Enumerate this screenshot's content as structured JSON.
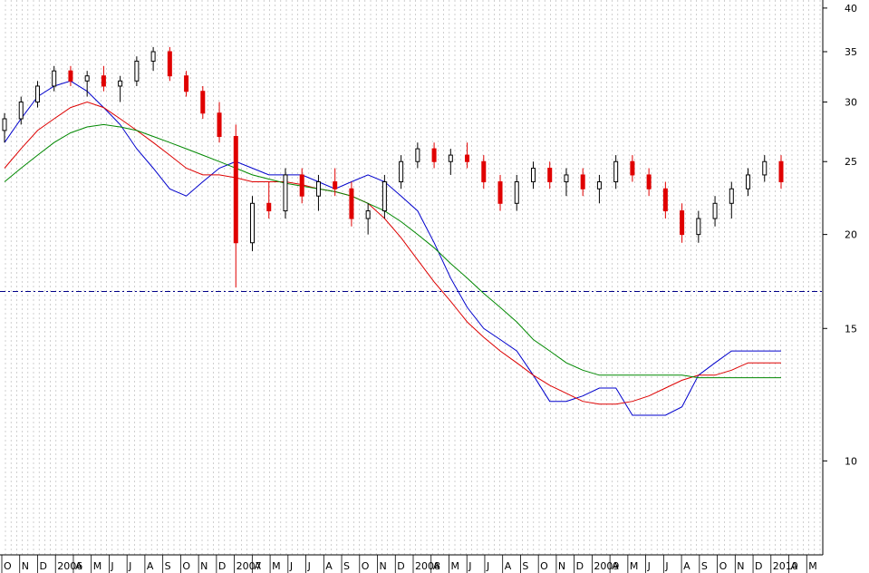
{
  "chart_data": {
    "type": "candlestick",
    "scale": "log",
    "ylim": [
      7.5,
      41
    ],
    "yticks": [
      {
        "value": 40,
        "label": "40"
      },
      {
        "value": 35,
        "label": "35"
      },
      {
        "value": 30,
        "label": "30"
      },
      {
        "value": 25,
        "label": "25"
      },
      {
        "value": 20,
        "label": "20"
      },
      {
        "value": 15,
        "label": "15"
      },
      {
        "value": 10,
        "label": "10"
      }
    ],
    "xticks": [
      "O",
      "N",
      "D",
      "2006",
      "A",
      "M",
      "J",
      "J",
      "A",
      "S",
      "O",
      "N",
      "D",
      "2007",
      "A",
      "M",
      "J",
      "J",
      "A",
      "S",
      "O",
      "N",
      "D",
      "2008",
      "A",
      "M",
      "J",
      "J",
      "A",
      "S",
      "O",
      "N",
      "D",
      "2009",
      "A",
      "M",
      "J",
      "J",
      "A",
      "S",
      "O",
      "N",
      "D",
      "2010",
      "A",
      "M"
    ],
    "grid": true,
    "reference_line": 16.8,
    "colors": {
      "up": "#000000",
      "down": "#e00000",
      "ma_short": "#0000cc",
      "ma_medium": "#dd0000",
      "ma_long": "#008800",
      "grid": "#b0b0b0",
      "axis": "#000000",
      "reference": "#000088"
    },
    "series": [
      {
        "name": "",
        "color": "#0000cc",
        "values": [
          26.5,
          28.5,
          30.5,
          31.5,
          32.0,
          31.0,
          29.5,
          28.0,
          26.0,
          24.5,
          23.0,
          22.5,
          23.5,
          24.5,
          25.0,
          24.5,
          24.0,
          24.0,
          24.0,
          23.5,
          23.0,
          23.5,
          24.0,
          23.5,
          22.5,
          21.5,
          19.5,
          17.5,
          16.0,
          15.0,
          14.5,
          14.0,
          13.0,
          12.0,
          12.0,
          12.2,
          12.5,
          12.5,
          11.5,
          11.5,
          11.5,
          11.8,
          13.0,
          13.5,
          14.0,
          14.0,
          14.0,
          14.0
        ]
      },
      {
        "name": "",
        "color": "#dd0000",
        "values": [
          24.5,
          26.0,
          27.5,
          28.5,
          29.5,
          30.0,
          29.5,
          28.5,
          27.5,
          26.5,
          25.5,
          24.5,
          24.0,
          24.0,
          23.8,
          23.5,
          23.5,
          23.5,
          23.3,
          23.0,
          22.8,
          22.5,
          22.0,
          21.0,
          19.8,
          18.5,
          17.3,
          16.3,
          15.3,
          14.6,
          14.0,
          13.5,
          13.0,
          12.6,
          12.3,
          12.0,
          11.9,
          11.9,
          12.0,
          12.2,
          12.5,
          12.8,
          13.0,
          13.0,
          13.2,
          13.5,
          13.5,
          13.5
        ]
      },
      {
        "name": "",
        "color": "#008800",
        "values": [
          23.5,
          24.5,
          25.5,
          26.5,
          27.3,
          27.8,
          28.0,
          27.8,
          27.5,
          27.0,
          26.5,
          26.0,
          25.5,
          25.0,
          24.5,
          24.0,
          23.7,
          23.4,
          23.2,
          23.0,
          22.8,
          22.5,
          22.0,
          21.5,
          20.8,
          20.0,
          19.2,
          18.3,
          17.5,
          16.7,
          16.0,
          15.3,
          14.5,
          14.0,
          13.5,
          13.2,
          13.0,
          13.0,
          13.0,
          13.0,
          13.0,
          13.0,
          12.9,
          12.9,
          12.9,
          12.9,
          12.9,
          12.9
        ]
      }
    ],
    "candles": [
      [
        27.5,
        29.0,
        26.5,
        28.5
      ],
      [
        28.5,
        30.5,
        28.0,
        30.0
      ],
      [
        30.0,
        32.0,
        29.5,
        31.5
      ],
      [
        31.5,
        33.5,
        31.0,
        33.0
      ],
      [
        33.0,
        33.5,
        31.5,
        32.0
      ],
      [
        32.0,
        33.0,
        30.5,
        32.5
      ],
      [
        32.5,
        33.5,
        31.0,
        31.5
      ],
      [
        31.5,
        32.5,
        30.0,
        32.0
      ],
      [
        32.0,
        34.5,
        31.5,
        34.0
      ],
      [
        34.0,
        35.5,
        33.0,
        35.0
      ],
      [
        35.0,
        35.5,
        32.0,
        32.5
      ],
      [
        32.5,
        33.0,
        30.5,
        31.0
      ],
      [
        31.0,
        31.5,
        28.5,
        29.0
      ],
      [
        29.0,
        30.0,
        26.5,
        27.0
      ],
      [
        27.0,
        28.0,
        17.0,
        19.5
      ],
      [
        19.5,
        22.5,
        19.0,
        22.0
      ],
      [
        22.0,
        23.5,
        21.0,
        21.5
      ],
      [
        21.5,
        24.5,
        21.0,
        24.0
      ],
      [
        24.0,
        24.5,
        22.0,
        22.5
      ],
      [
        22.5,
        24.0,
        21.5,
        23.5
      ],
      [
        23.5,
        24.5,
        22.5,
        23.0
      ],
      [
        23.0,
        23.5,
        20.5,
        21.0
      ],
      [
        21.0,
        22.0,
        20.0,
        21.5
      ],
      [
        21.5,
        24.0,
        21.0,
        23.5
      ],
      [
        23.5,
        25.5,
        23.0,
        25.0
      ],
      [
        25.0,
        26.5,
        24.5,
        26.0
      ],
      [
        26.0,
        26.5,
        24.5,
        25.0
      ],
      [
        25.0,
        26.0,
        24.0,
        25.5
      ],
      [
        25.5,
        26.5,
        24.5,
        25.0
      ],
      [
        25.0,
        25.5,
        23.0,
        23.5
      ],
      [
        23.5,
        24.0,
        21.5,
        22.0
      ],
      [
        22.0,
        24.0,
        21.5,
        23.5
      ],
      [
        23.5,
        25.0,
        23.0,
        24.5
      ],
      [
        24.5,
        25.0,
        23.0,
        23.5
      ],
      [
        23.5,
        24.5,
        22.5,
        24.0
      ],
      [
        24.0,
        24.5,
        22.5,
        23.0
      ],
      [
        23.0,
        24.0,
        22.0,
        23.5
      ],
      [
        23.5,
        25.5,
        23.0,
        25.0
      ],
      [
        25.0,
        25.5,
        23.5,
        24.0
      ],
      [
        24.0,
        24.5,
        22.5,
        23.0
      ],
      [
        23.0,
        23.5,
        21.0,
        21.5
      ],
      [
        21.5,
        22.0,
        19.5,
        20.0
      ],
      [
        20.0,
        21.5,
        19.5,
        21.0
      ],
      [
        21.0,
        22.5,
        20.5,
        22.0
      ],
      [
        22.0,
        23.5,
        21.0,
        23.0
      ],
      [
        23.0,
        24.5,
        22.5,
        24.0
      ],
      [
        24.0,
        25.5,
        23.5,
        25.0
      ],
      [
        25.0,
        25.5,
        23.0,
        23.5
      ]
    ]
  }
}
